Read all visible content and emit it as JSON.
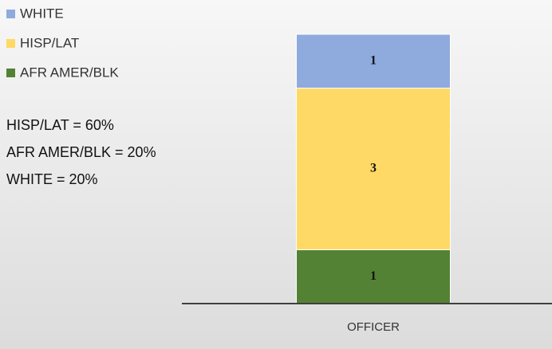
{
  "chart_data": {
    "type": "stacked_bar",
    "categories": [
      "OFFICER"
    ],
    "series": [
      {
        "name": "AFR AMER/BLK",
        "color": "#548235",
        "values": [
          1
        ]
      },
      {
        "name": "HISP/LAT",
        "color": "#ffd966",
        "values": [
          3
        ]
      },
      {
        "name": "WHITE",
        "color": "#8faadc",
        "values": [
          1
        ]
      }
    ],
    "annotations": [
      "HISP/LAT = 60%",
      "AFR AMER/BLK = 20%",
      "WHITE = 20%"
    ]
  }
}
